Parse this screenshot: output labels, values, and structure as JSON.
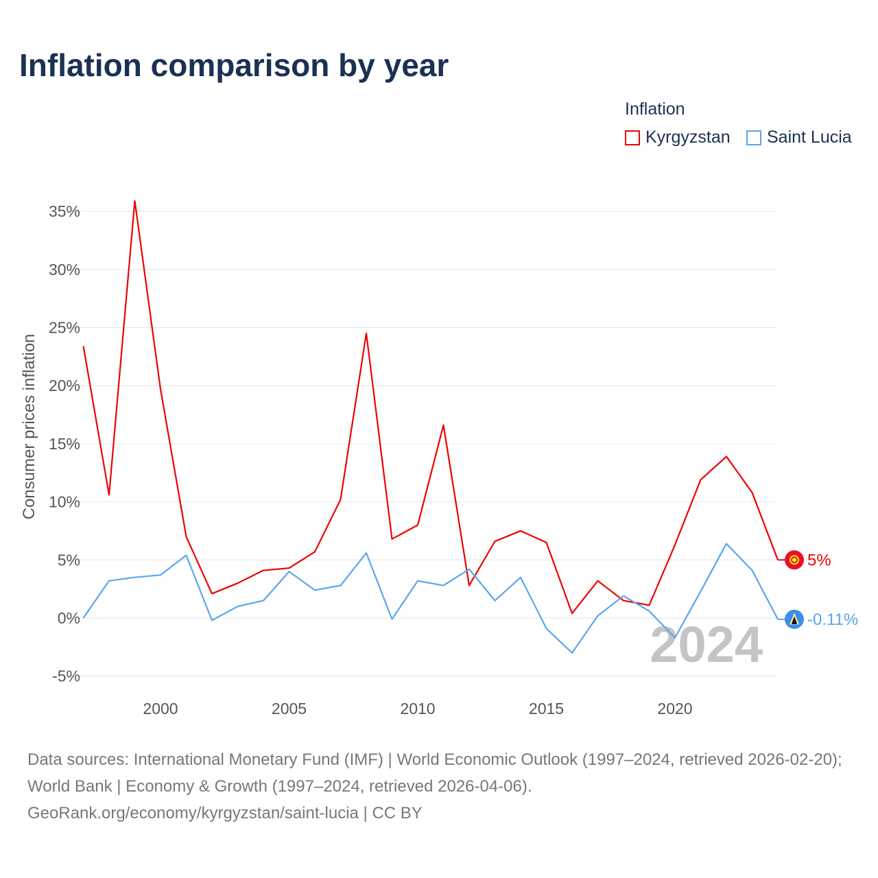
{
  "title": "Inflation comparison by year",
  "legend": {
    "title": "Inflation",
    "items": [
      {
        "label": "Kyrgyzstan",
        "color": "#ee0000"
      },
      {
        "label": "Saint Lucia",
        "color": "#5aa5ec"
      }
    ]
  },
  "source": {
    "line1": "Data sources: International Monetary Fund (IMF) | World Economic Outlook (1997–2024, retrieved 2026-02-20); World Bank | Economy & Growth (1997–2024, retrieved 2026-04-06).",
    "line2": "GeoRank.org/economy/kyrgyzstan/saint-lucia | CC BY"
  },
  "chart_data": {
    "type": "line",
    "title": "Inflation comparison by year",
    "xlabel": "",
    "ylabel": "Consumer prices inflation",
    "x": [
      1997,
      1998,
      1999,
      2000,
      2001,
      2002,
      2003,
      2004,
      2005,
      2006,
      2007,
      2008,
      2009,
      2010,
      2011,
      2012,
      2013,
      2014,
      2015,
      2016,
      2017,
      2018,
      2019,
      2020,
      2021,
      2022,
      2023,
      2024
    ],
    "xlim": [
      1997,
      2024
    ],
    "ylim": [
      -5,
      35
    ],
    "xticks": [
      2000,
      2005,
      2010,
      2015,
      2020
    ],
    "yticks": [
      -5,
      0,
      5,
      10,
      15,
      20,
      25,
      30,
      35
    ],
    "ytick_labels": [
      "-5%",
      "0%",
      "5%",
      "10%",
      "15%",
      "20%",
      "25%",
      "30%",
      "35%"
    ],
    "year_watermark": "2024",
    "series": [
      {
        "name": "Kyrgyzstan",
        "color": "#ee0000",
        "end_label": "5%",
        "values": [
          23.4,
          10.6,
          35.9,
          19.7,
          7.0,
          2.1,
          3.0,
          4.1,
          4.3,
          5.7,
          10.2,
          24.5,
          6.8,
          8.0,
          16.6,
          2.8,
          6.6,
          7.5,
          6.5,
          0.4,
          3.2,
          1.5,
          1.1,
          6.3,
          11.9,
          13.9,
          10.8,
          5.0
        ]
      },
      {
        "name": "Saint Lucia",
        "color": "#5aa5ec",
        "end_label": "-0.11%",
        "values": [
          0.0,
          3.2,
          3.5,
          3.7,
          5.4,
          -0.2,
          1.0,
          1.5,
          4.0,
          2.4,
          2.8,
          5.6,
          -0.1,
          3.2,
          2.8,
          4.2,
          1.5,
          3.5,
          -0.9,
          -3.0,
          0.2,
          1.9,
          0.6,
          -1.7,
          2.3,
          6.4,
          4.1,
          -0.11
        ]
      }
    ],
    "grid": true,
    "legend_position": "top-right"
  }
}
